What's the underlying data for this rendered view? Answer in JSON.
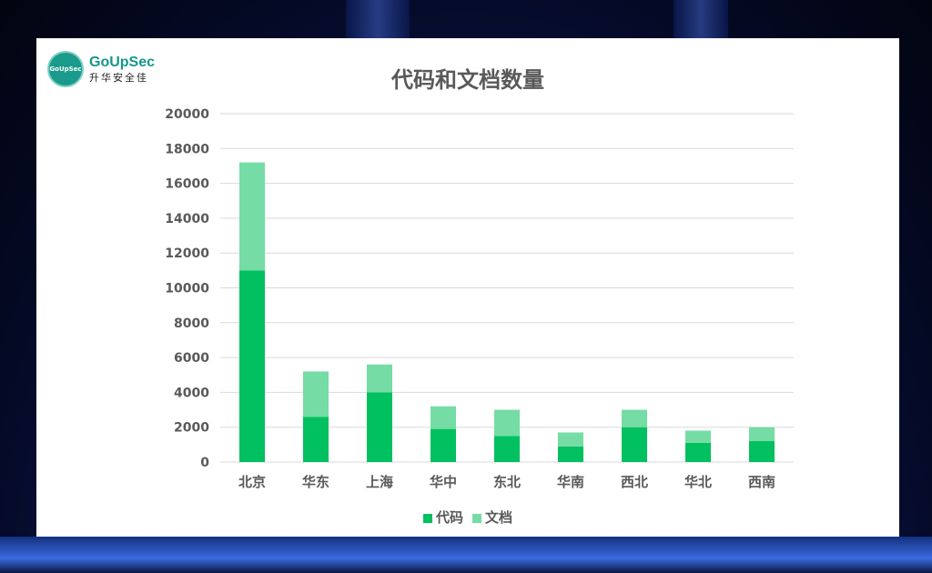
{
  "logo": {
    "en": "GoUpSec",
    "zh": "升华安全佳",
    "seal_text": "GoUpSec"
  },
  "chart_data": {
    "type": "bar",
    "stacked": true,
    "title": "代码和文档数量",
    "categories": [
      "北京",
      "华东",
      "上海",
      "华中",
      "东北",
      "华南",
      "西北",
      "华北",
      "西南"
    ],
    "series": [
      {
        "name": "代码",
        "color": "#00c060",
        "values": [
          11000,
          2600,
          4000,
          1900,
          1500,
          900,
          2000,
          1100,
          1200
        ]
      },
      {
        "name": "文档",
        "color": "#74dca4",
        "values": [
          6200,
          2600,
          1600,
          1300,
          1500,
          800,
          1000,
          700,
          800
        ]
      }
    ],
    "ylim": [
      0,
      20000
    ],
    "yticks": [
      0,
      2000,
      4000,
      6000,
      8000,
      10000,
      12000,
      14000,
      16000,
      18000,
      20000
    ],
    "grid": true,
    "legend": "bottom",
    "xlabel": "",
    "ylabel": ""
  }
}
